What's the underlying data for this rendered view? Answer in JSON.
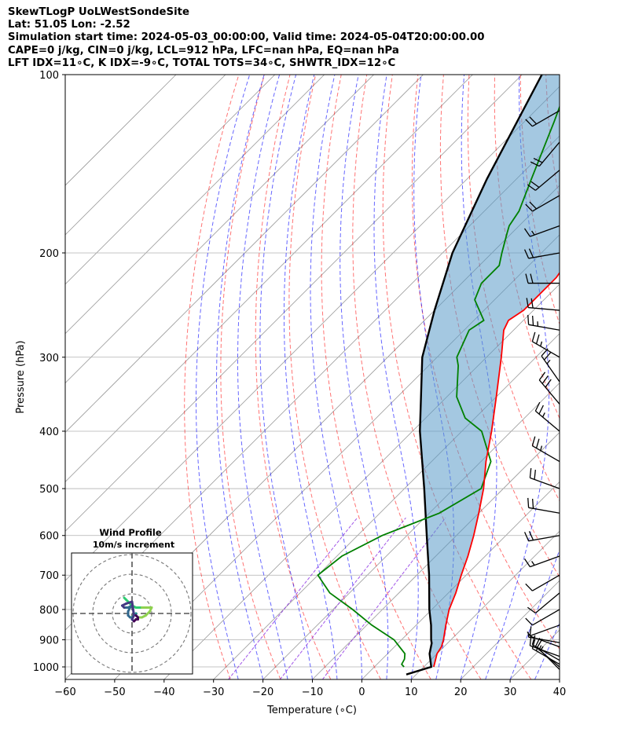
{
  "header": {
    "line1": "SkewTLogP UoLWestSondeSite",
    "line2": "Lat: 51.05   Lon: -2.52",
    "line3": "Simulation start time: 2024-05-03_00:00:00, Valid time: 2024-05-04T20:00:00.00",
    "line4": "CAPE=0 j/kg, CIN=0 j/kg, LCL=912 hPa, LFC=nan hPa, EQ=nan hPa",
    "line5": "LFT IDX=11∘C, K IDX=-9∘C, TOTAL TOTS=34∘C, SHWTR_IDX=12∘C"
  },
  "chart_data": {
    "type": "skewt",
    "xlabel": "Temperature (∘C)",
    "ylabel": "Pressure (hPa)",
    "xlim": [
      -60,
      40
    ],
    "ylim": [
      1050,
      100
    ],
    "y_scale": "log",
    "x_ticks": [
      -60,
      -50,
      -40,
      -30,
      -20,
      -10,
      0,
      10,
      20,
      30,
      40
    ],
    "y_ticks": [
      100,
      200,
      300,
      400,
      500,
      600,
      700,
      800,
      900,
      1000
    ],
    "grid": true,
    "colors": {
      "temperature": "#ff0000",
      "dewpoint": "#008000",
      "parcel": "#000000",
      "cin_cape_fill": "#5a9bc8",
      "dry_adiabats": "#ff0000",
      "moist_adiabats": "#0000ff",
      "mixing_ratio": "#8a2be2",
      "isotherms": "#999999"
    },
    "temperature": [
      [
        1000,
        12.0
      ],
      [
        950,
        10.0
      ],
      [
        925,
        9.5
      ],
      [
        900,
        8.5
      ],
      [
        850,
        6.0
      ],
      [
        800,
        3.5
      ],
      [
        750,
        1.5
      ],
      [
        700,
        -1.0
      ],
      [
        650,
        -3.5
      ],
      [
        600,
        -6.5
      ],
      [
        550,
        -10.0
      ],
      [
        500,
        -14.0
      ],
      [
        450,
        -19.0
      ],
      [
        400,
        -24.0
      ],
      [
        350,
        -30.0
      ],
      [
        300,
        -37.0
      ],
      [
        270,
        -42.0
      ],
      [
        260,
        -43.0
      ],
      [
        250,
        -42.0
      ],
      [
        220,
        -42.0
      ],
      [
        200,
        -43.5
      ],
      [
        180,
        -45.0
      ],
      [
        160,
        -47.5
      ],
      [
        150,
        -49.5
      ],
      [
        140,
        -51.0
      ],
      [
        130,
        -54.0
      ],
      [
        120,
        -55.5
      ],
      [
        110,
        -57.0
      ],
      [
        100,
        -59.0
      ]
    ],
    "dewpoint": [
      [
        1000,
        6.0
      ],
      [
        990,
        5.0
      ],
      [
        970,
        4.5
      ],
      [
        950,
        3.5
      ],
      [
        900,
        -1.5
      ],
      [
        850,
        -9.0
      ],
      [
        800,
        -16.0
      ],
      [
        750,
        -24.0
      ],
      [
        700,
        -30.0
      ],
      [
        650,
        -29.0
      ],
      [
        600,
        -25.0
      ],
      [
        550,
        -18.0
      ],
      [
        500,
        -14.5
      ],
      [
        450,
        -18.0
      ],
      [
        400,
        -26.0
      ],
      [
        380,
        -32.0
      ],
      [
        350,
        -38.0
      ],
      [
        310,
        -44.0
      ],
      [
        300,
        -46.0
      ],
      [
        270,
        -49.0
      ],
      [
        260,
        -48.0
      ],
      [
        240,
        -54.0
      ],
      [
        225,
        -56.0
      ],
      [
        210,
        -56.0
      ],
      [
        200,
        -58.0
      ],
      [
        185,
        -61.0
      ],
      [
        180,
        -62.0
      ],
      [
        170,
        -63.0
      ],
      [
        150,
        -67.0
      ],
      [
        120,
        -74.0
      ],
      [
        100,
        -80.0
      ]
    ],
    "parcel": [
      [
        1030,
        8.0
      ],
      [
        1000,
        11.5
      ],
      [
        950,
        8.5
      ],
      [
        912,
        6.8
      ],
      [
        900,
        6.0
      ],
      [
        850,
        3.0
      ],
      [
        800,
        -0.5
      ],
      [
        700,
        -7.5
      ],
      [
        600,
        -16.0
      ],
      [
        500,
        -26.0
      ],
      [
        400,
        -38.5
      ],
      [
        300,
        -53.0
      ],
      [
        250,
        -60.0
      ],
      [
        200,
        -68.0
      ],
      [
        150,
        -76.0
      ],
      [
        100,
        -86.0
      ]
    ],
    "wind_barbs": [
      [
        1010,
        315,
        15
      ],
      [
        1000,
        310,
        15
      ],
      [
        990,
        300,
        15
      ],
      [
        975,
        300,
        12
      ],
      [
        960,
        290,
        10
      ],
      [
        925,
        290,
        8
      ],
      [
        910,
        280,
        5
      ],
      [
        850,
        250,
        5
      ],
      [
        800,
        240,
        8
      ],
      [
        750,
        230,
        10
      ],
      [
        700,
        240,
        12
      ],
      [
        650,
        250,
        15
      ],
      [
        600,
        260,
        18
      ],
      [
        550,
        280,
        20
      ],
      [
        500,
        290,
        22
      ],
      [
        450,
        300,
        25
      ],
      [
        400,
        310,
        25
      ],
      [
        360,
        320,
        28
      ],
      [
        330,
        325,
        25
      ],
      [
        300,
        300,
        25
      ],
      [
        270,
        280,
        25
      ],
      [
        250,
        275,
        22
      ],
      [
        225,
        270,
        20
      ],
      [
        200,
        260,
        18
      ],
      [
        180,
        250,
        15
      ],
      [
        160,
        240,
        18
      ],
      [
        145,
        230,
        20
      ],
      [
        130,
        220,
        20
      ],
      [
        115,
        240,
        20
      ]
    ],
    "hodograph": {
      "title": "Wind Profile",
      "subtitle": "10m/s increment",
      "ring_increment_ms": 10,
      "points": [
        [
          -2.0,
          -4.0
        ],
        [
          -1.5,
          -3.5
        ],
        [
          -1.0,
          -3.0
        ],
        [
          -0.5,
          -2.5
        ],
        [
          0.0,
          -2.0
        ],
        [
          1.0,
          -1.5
        ],
        [
          2.5,
          -1.5
        ],
        [
          4.0,
          -1.5
        ],
        [
          5.0,
          -1.5
        ],
        [
          4.5,
          -0.5
        ],
        [
          3.5,
          0.5
        ],
        [
          2.5,
          1.0
        ],
        [
          1.5,
          1.0
        ],
        [
          1.0,
          0.5
        ],
        [
          1.0,
          0.0
        ],
        [
          0.5,
          0.5
        ],
        [
          0.0,
          1.0
        ],
        [
          -0.5,
          1.0
        ],
        [
          -1.0,
          0.5
        ],
        [
          -1.0,
          -0.5
        ],
        [
          -0.5,
          -1.5
        ],
        [
          0.0,
          -2.0
        ],
        [
          -1.0,
          -1.5
        ],
        [
          -2.0,
          -1.5
        ],
        [
          -2.5,
          -2.0
        ],
        [
          -1.5,
          -2.5
        ],
        [
          0.0,
          -3.0
        ],
        [
          0.5,
          0.5
        ],
        [
          0.0,
          1.5
        ],
        [
          0.5,
          2.0
        ],
        [
          1.0,
          1.5
        ],
        [
          1.5,
          1.5
        ],
        [
          1.5,
          1.0
        ],
        [
          1.0,
          0.5
        ]
      ]
    }
  }
}
